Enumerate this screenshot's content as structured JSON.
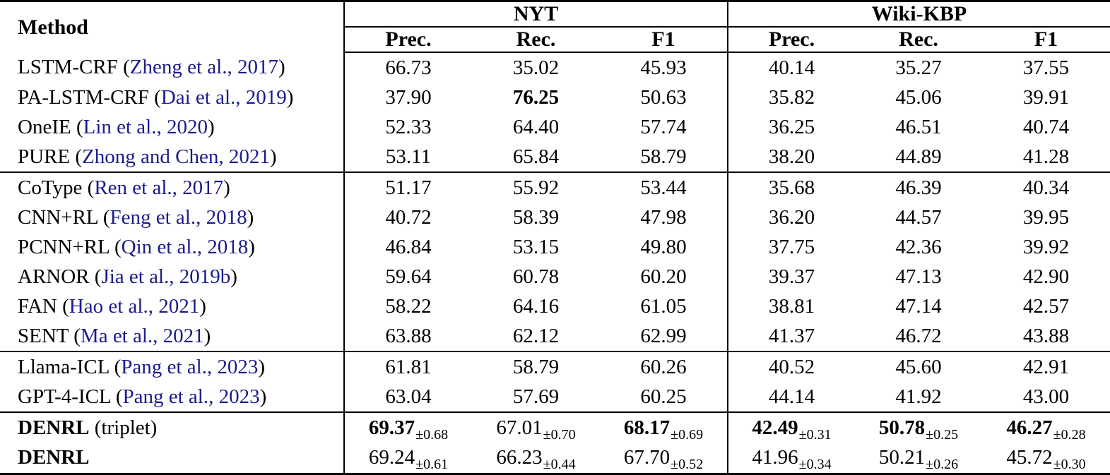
{
  "colors": {
    "citation": "#1b1b8c",
    "text": "#000000",
    "rule": "#000000",
    "background": "#ffffff"
  },
  "table": {
    "method_label": "Method",
    "groups": [
      {
        "label": "NYT",
        "cols": [
          "Prec.",
          "Rec.",
          "F1"
        ]
      },
      {
        "label": "Wiki-KBP",
        "cols": [
          "Prec.",
          "Rec.",
          "F1"
        ]
      }
    ],
    "sections": [
      {
        "rows": [
          {
            "name": "LSTM-CRF",
            "cite": "Zheng et al., 2017",
            "values": [
              {
                "text": "66.73"
              },
              {
                "text": "35.02"
              },
              {
                "text": "45.93"
              },
              {
                "text": "40.14"
              },
              {
                "text": "35.27"
              },
              {
                "text": "37.55"
              }
            ]
          },
          {
            "name": "PA-LSTM-CRF",
            "cite": "Dai et al., 2019",
            "values": [
              {
                "text": "37.90"
              },
              {
                "text": "76.25",
                "bold": true
              },
              {
                "text": "50.63"
              },
              {
                "text": "35.82"
              },
              {
                "text": "45.06"
              },
              {
                "text": "39.91"
              }
            ]
          },
          {
            "name": "OneIE",
            "cite": "Lin et al., 2020",
            "values": [
              {
                "text": "52.33"
              },
              {
                "text": "64.40"
              },
              {
                "text": "57.74"
              },
              {
                "text": "36.25"
              },
              {
                "text": "46.51"
              },
              {
                "text": "40.74"
              }
            ]
          },
          {
            "name": "PURE",
            "cite": "Zhong and Chen, 2021",
            "values": [
              {
                "text": "53.11"
              },
              {
                "text": "65.84"
              },
              {
                "text": "58.79"
              },
              {
                "text": "38.20"
              },
              {
                "text": "44.89"
              },
              {
                "text": "41.28"
              }
            ]
          }
        ]
      },
      {
        "rows": [
          {
            "name": "CoType",
            "cite": "Ren et al., 2017",
            "values": [
              {
                "text": "51.17"
              },
              {
                "text": "55.92"
              },
              {
                "text": "53.44"
              },
              {
                "text": "35.68"
              },
              {
                "text": "46.39"
              },
              {
                "text": "40.34"
              }
            ]
          },
          {
            "name": "CNN+RL",
            "cite": "Feng et al., 2018",
            "values": [
              {
                "text": "40.72"
              },
              {
                "text": "58.39"
              },
              {
                "text": "47.98"
              },
              {
                "text": "36.20"
              },
              {
                "text": "44.57"
              },
              {
                "text": "39.95"
              }
            ]
          },
          {
            "name": "PCNN+RL",
            "cite": "Qin et al., 2018",
            "values": [
              {
                "text": "46.84"
              },
              {
                "text": "53.15"
              },
              {
                "text": "49.80"
              },
              {
                "text": "37.75"
              },
              {
                "text": "42.36"
              },
              {
                "text": "39.92"
              }
            ]
          },
          {
            "name": "ARNOR",
            "cite": "Jia et al., 2019b",
            "values": [
              {
                "text": "59.64"
              },
              {
                "text": "60.78"
              },
              {
                "text": "60.20"
              },
              {
                "text": "39.37"
              },
              {
                "text": "47.13"
              },
              {
                "text": "42.90"
              }
            ]
          },
          {
            "name": "FAN",
            "cite": "Hao et al., 2021",
            "values": [
              {
                "text": "58.22"
              },
              {
                "text": "64.16"
              },
              {
                "text": "61.05"
              },
              {
                "text": "38.81"
              },
              {
                "text": "47.14"
              },
              {
                "text": "42.57"
              }
            ]
          },
          {
            "name": "SENT",
            "cite": "Ma et al., 2021",
            "values": [
              {
                "text": "63.88"
              },
              {
                "text": "62.12"
              },
              {
                "text": "62.99"
              },
              {
                "text": "41.37"
              },
              {
                "text": "46.72"
              },
              {
                "text": "43.88"
              }
            ]
          }
        ]
      },
      {
        "rows": [
          {
            "name": "Llama-ICL",
            "cite": "Pang et al., 2023",
            "values": [
              {
                "text": "61.81"
              },
              {
                "text": "58.79"
              },
              {
                "text": "60.26"
              },
              {
                "text": "40.52"
              },
              {
                "text": "45.60"
              },
              {
                "text": "42.91"
              }
            ]
          },
          {
            "name": "GPT-4-ICL",
            "cite": "Pang et al., 2023",
            "values": [
              {
                "text": "63.04"
              },
              {
                "text": "57.69"
              },
              {
                "text": "60.25"
              },
              {
                "text": "44.14"
              },
              {
                "text": "41.92"
              },
              {
                "text": "43.00"
              }
            ]
          }
        ]
      },
      {
        "rows": [
          {
            "name": "DENRL",
            "bold": true,
            "note": "(triplet)",
            "values": [
              {
                "text": "69.37",
                "sub": "±0.68",
                "bold": true
              },
              {
                "text": "67.01",
                "sub": "±0.70"
              },
              {
                "text": "68.17",
                "sub": "±0.69",
                "bold": true
              },
              {
                "text": "42.49",
                "sub": "±0.31",
                "bold": true
              },
              {
                "text": "50.78",
                "sub": "±0.25",
                "bold": true
              },
              {
                "text": "46.27",
                "sub": "±0.28",
                "bold": true
              }
            ]
          },
          {
            "name": "DENRL",
            "bold": true,
            "values": [
              {
                "text": "69.24",
                "sub": "±0.61"
              },
              {
                "text": "66.23",
                "sub": "±0.44"
              },
              {
                "text": "67.70",
                "sub": "±0.52"
              },
              {
                "text": "41.96",
                "sub": "±0.34"
              },
              {
                "text": "50.21",
                "sub": "±0.26"
              },
              {
                "text": "45.72",
                "sub": "±0.30"
              }
            ]
          }
        ]
      }
    ]
  }
}
